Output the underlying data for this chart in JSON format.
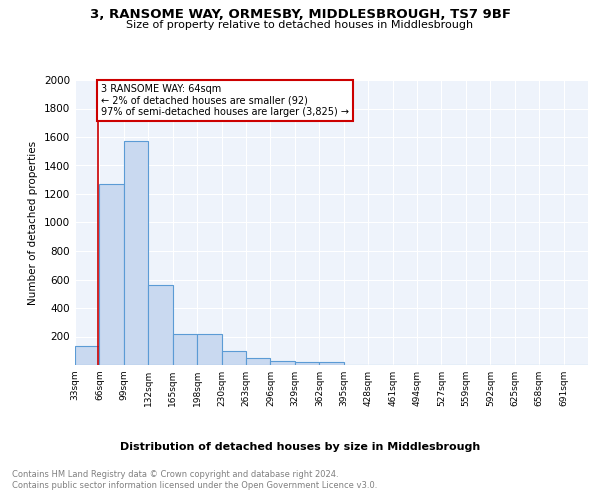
{
  "title1": "3, RANSOME WAY, ORMESBY, MIDDLESBROUGH, TS7 9BF",
  "title2": "Size of property relative to detached houses in Middlesbrough",
  "xlabel": "Distribution of detached houses by size in Middlesbrough",
  "ylabel": "Number of detached properties",
  "bin_labels": [
    "33sqm",
    "66sqm",
    "99sqm",
    "132sqm",
    "165sqm",
    "198sqm",
    "230sqm",
    "263sqm",
    "296sqm",
    "329sqm",
    "362sqm",
    "395sqm",
    "428sqm",
    "461sqm",
    "494sqm",
    "527sqm",
    "559sqm",
    "592sqm",
    "625sqm",
    "658sqm",
    "691sqm"
  ],
  "bar_heights": [
    135,
    1270,
    1570,
    560,
    215,
    215,
    98,
    50,
    25,
    20,
    20,
    0,
    0,
    0,
    0,
    0,
    0,
    0,
    0,
    0,
    0
  ],
  "bar_color": "#c9d9f0",
  "bar_edge_color": "#5b9bd5",
  "property_line_color": "#cc0000",
  "annotation_text": "3 RANSOME WAY: 64sqm\n← 2% of detached houses are smaller (92)\n97% of semi-detached houses are larger (3,825) →",
  "annotation_box_color": "#ffffff",
  "annotation_box_edge": "#cc0000",
  "ylim": [
    0,
    2000
  ],
  "yticks": [
    0,
    200,
    400,
    600,
    800,
    1000,
    1200,
    1400,
    1600,
    1800,
    2000
  ],
  "footer1": "Contains HM Land Registry data © Crown copyright and database right 2024.",
  "footer2": "Contains public sector information licensed under the Open Government Licence v3.0.",
  "bg_color": "#eef3fb",
  "grid_color": "#ffffff"
}
